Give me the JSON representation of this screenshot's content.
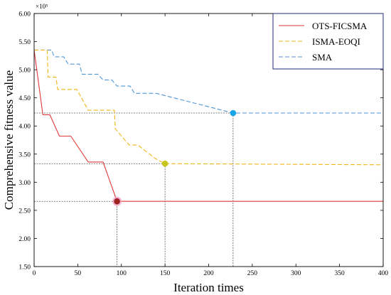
{
  "chart_data": {
    "type": "line",
    "xlabel": "Iteration times",
    "ylabel": "Comprehensive fitness value",
    "y_multiplier_label": "×10⁵",
    "xlim": [
      0,
      400
    ],
    "ylim": [
      1.5,
      6.0
    ],
    "x_ticks": [
      0,
      50,
      100,
      150,
      200,
      250,
      300,
      350,
      400
    ],
    "y_ticks": [
      1.5,
      2.0,
      2.5,
      3.0,
      3.5,
      4.0,
      4.5,
      5.0,
      5.5,
      6.0
    ],
    "x_tick_labels": [
      "0",
      "50",
      "100",
      "150",
      "200",
      "250",
      "300",
      "350",
      "400"
    ],
    "y_tick_labels": [
      "1.50",
      "2.00",
      "2.50",
      "3.00",
      "3.50",
      "4.00",
      "4.50",
      "5.00",
      "5.50",
      "6.00"
    ],
    "grid": false,
    "legend_position": "top-right",
    "series": [
      {
        "name": "OTS-FICSMA",
        "color": "#e03a3a",
        "style": "solid",
        "points": [
          [
            0,
            5.35
          ],
          [
            10,
            4.2
          ],
          [
            18,
            4.2
          ],
          [
            29,
            3.82
          ],
          [
            42,
            3.82
          ],
          [
            62,
            3.36
          ],
          [
            79,
            3.36
          ],
          [
            95,
            2.66
          ],
          [
            400,
            2.66
          ]
        ]
      },
      {
        "name": "ISMA-EOQI",
        "color": "#f2b51c",
        "style": "dashed",
        "points": [
          [
            0,
            5.35
          ],
          [
            15,
            5.35
          ],
          [
            16,
            4.87
          ],
          [
            25,
            4.87
          ],
          [
            27,
            4.65
          ],
          [
            49,
            4.65
          ],
          [
            62,
            4.28
          ],
          [
            92,
            4.28
          ],
          [
            93,
            3.95
          ],
          [
            104,
            3.75
          ],
          [
            109,
            3.66
          ],
          [
            119,
            3.66
          ],
          [
            139,
            3.42
          ],
          [
            150,
            3.33
          ],
          [
            400,
            3.31
          ]
        ]
      },
      {
        "name": "SMA",
        "color": "#4f96d8",
        "style": "dashed",
        "points": [
          [
            0,
            5.35
          ],
          [
            20,
            5.35
          ],
          [
            23,
            5.23
          ],
          [
            34,
            5.23
          ],
          [
            39,
            5.1
          ],
          [
            52,
            5.1
          ],
          [
            55,
            4.92
          ],
          [
            73,
            4.92
          ],
          [
            79,
            4.82
          ],
          [
            89,
            4.82
          ],
          [
            95,
            4.71
          ],
          [
            110,
            4.71
          ],
          [
            115,
            4.58
          ],
          [
            140,
            4.58
          ],
          [
            228,
            4.23
          ],
          [
            400,
            4.23
          ]
        ]
      }
    ],
    "markers": [
      {
        "x": 95,
        "y": 2.66,
        "color": "#9e2222",
        "halo": "#f2a6c8"
      },
      {
        "x": 150,
        "y": 3.33,
        "color": "#c5c51e"
      },
      {
        "x": 228,
        "y": 4.23,
        "color": "#1aa6e6"
      }
    ],
    "reference_lines_color": "#555555"
  }
}
